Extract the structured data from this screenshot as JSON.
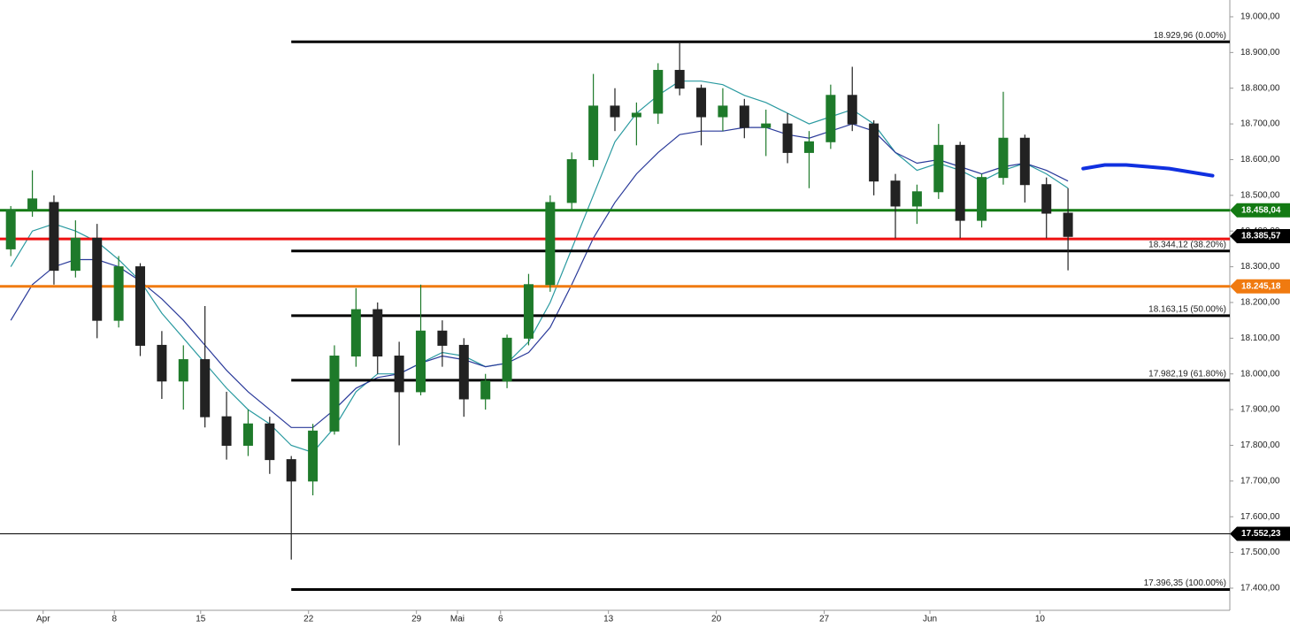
{
  "chart_data": {
    "type": "candlestick",
    "xlim": [
      0,
      57
    ],
    "ylim": [
      17338,
      19047
    ],
    "xticks": [
      {
        "value": 2.0,
        "label": "Apr"
      },
      {
        "value": 5.3,
        "label": "8"
      },
      {
        "value": 9.3,
        "label": "15"
      },
      {
        "value": 14.3,
        "label": "22"
      },
      {
        "value": 19.3,
        "label": "29"
      },
      {
        "value": 21.2,
        "label": "Mai"
      },
      {
        "value": 23.2,
        "label": "6"
      },
      {
        "value": 28.2,
        "label": "13"
      },
      {
        "value": 33.2,
        "label": "20"
      },
      {
        "value": 38.2,
        "label": "27"
      },
      {
        "value": 43.1,
        "label": "Jun"
      },
      {
        "value": 48.2,
        "label": "10"
      }
    ],
    "yticks": [
      {
        "value": 17400,
        "label": "17.400,00"
      },
      {
        "value": 17500,
        "label": "17.500,00"
      },
      {
        "value": 17600,
        "label": "17.600,00"
      },
      {
        "value": 17700,
        "label": "17.700,00"
      },
      {
        "value": 17800,
        "label": "17.800,00"
      },
      {
        "value": 17900,
        "label": "17.900,00"
      },
      {
        "value": 18000,
        "label": "18.000,00"
      },
      {
        "value": 18100,
        "label": "18.100,00"
      },
      {
        "value": 18200,
        "label": "18.200,00"
      },
      {
        "value": 18300,
        "label": "18.300,00"
      },
      {
        "value": 18400,
        "label": "18.400,00"
      },
      {
        "value": 18500,
        "label": "18.500,00"
      },
      {
        "value": 18600,
        "label": "18.600,00"
      },
      {
        "value": 18700,
        "label": "18.700,00"
      },
      {
        "value": 18800,
        "label": "18.800,00"
      },
      {
        "value": 18900,
        "label": "18.900,00"
      },
      {
        "value": 19000,
        "label": "19.000,00"
      }
    ],
    "up_color": "#1e7a2a",
    "down_color": "#222222",
    "x": [
      0.5,
      1.5,
      2.5,
      3.5,
      4.5,
      5.5,
      6.5,
      7.5,
      8.5,
      9.5,
      10.5,
      11.5,
      12.5,
      13.5,
      14.5,
      15.5,
      16.5,
      17.5,
      18.5,
      19.5,
      20.5,
      21.5,
      22.5,
      23.5,
      24.5,
      25.5,
      26.5,
      27.5,
      28.5,
      29.5,
      30.5,
      31.5,
      32.5,
      33.5,
      34.5,
      35.5,
      36.5,
      37.5,
      38.5,
      39.5,
      40.5,
      41.5,
      42.5,
      43.5,
      44.5,
      45.5,
      46.5,
      47.5,
      48.5,
      49.5
    ],
    "open": [
      18350,
      18460,
      18480,
      18290,
      18380,
      18150,
      18300,
      18080,
      17980,
      18040,
      17880,
      17800,
      17860,
      17760,
      17700,
      17840,
      18050,
      18180,
      18050,
      17950,
      18120,
      18080,
      17930,
      17980,
      18100,
      18250,
      18480,
      18600,
      18750,
      18720,
      18730,
      18850,
      18800,
      18720,
      18750,
      18690,
      18700,
      18620,
      18650,
      18780,
      18700,
      18540,
      18470,
      18510,
      18640,
      18430,
      18550,
      18660,
      18530,
      18450
    ],
    "high": [
      18470,
      18570,
      18500,
      18430,
      18420,
      18330,
      18310,
      18120,
      18080,
      18190,
      17950,
      17900,
      17880,
      17770,
      17860,
      18080,
      18240,
      18200,
      18090,
      18250,
      18150,
      18100,
      18000,
      18110,
      18280,
      18500,
      18620,
      18840,
      18800,
      18760,
      18870,
      18930,
      18810,
      18800,
      18770,
      18740,
      18730,
      18680,
      18810,
      18860,
      18710,
      18560,
      18530,
      18700,
      18650,
      18560,
      18790,
      18670,
      18550,
      18520
    ],
    "low": [
      18330,
      18440,
      18250,
      18270,
      18100,
      18130,
      18050,
      17930,
      17900,
      17850,
      17760,
      17770,
      17720,
      17480,
      17660,
      17830,
      18020,
      18000,
      17800,
      17940,
      18020,
      17880,
      17900,
      17960,
      18080,
      18230,
      18460,
      18580,
      18680,
      18640,
      18700,
      18780,
      18640,
      18680,
      18660,
      18610,
      18590,
      18520,
      18630,
      18680,
      18500,
      18380,
      18420,
      18490,
      18380,
      18410,
      18530,
      18480,
      18380,
      18290
    ],
    "close": [
      18460,
      18490,
      18290,
      18380,
      18150,
      18300,
      18080,
      17980,
      18040,
      17880,
      17800,
      17860,
      17760,
      17700,
      17840,
      18050,
      18180,
      18050,
      17950,
      18120,
      18080,
      17930,
      17980,
      18100,
      18250,
      18480,
      18600,
      18750,
      18720,
      18730,
      18850,
      18800,
      18720,
      18750,
      18690,
      18700,
      18620,
      18650,
      18780,
      18700,
      18540,
      18470,
      18510,
      18640,
      18430,
      18550,
      18660,
      18530,
      18450,
      18385
    ],
    "series": [
      {
        "color": "#2a9aa0",
        "values": [
          18300,
          18400,
          18420,
          18400,
          18370,
          18320,
          18260,
          18170,
          18100,
          18030,
          17960,
          17900,
          17860,
          17800,
          17780,
          17850,
          17950,
          18000,
          18000,
          18030,
          18060,
          18050,
          18020,
          18030,
          18090,
          18200,
          18350,
          18500,
          18650,
          18730,
          18780,
          18820,
          18820,
          18810,
          18780,
          18760,
          18730,
          18700,
          18720,
          18740,
          18700,
          18620,
          18570,
          18590,
          18570,
          18540,
          18570,
          18590,
          18560,
          18520
        ]
      },
      {
        "color": "#2a3a9a",
        "values": [
          18150,
          18250,
          18300,
          18320,
          18320,
          18300,
          18260,
          18210,
          18150,
          18080,
          18010,
          17950,
          17900,
          17850,
          17850,
          17900,
          17960,
          17990,
          18000,
          18030,
          18050,
          18040,
          18020,
          18030,
          18060,
          18130,
          18250,
          18380,
          18480,
          18560,
          18620,
          18670,
          18680,
          18680,
          18690,
          18690,
          18670,
          18660,
          18680,
          18700,
          18680,
          18620,
          18590,
          18600,
          18580,
          18560,
          18580,
          18590,
          18570,
          18540
        ]
      }
    ],
    "forecast": {
      "color": "#1030e0",
      "x": [
        50.2,
        51.2,
        52.2,
        53.2,
        54.2,
        55.2,
        56.2
      ],
      "values": [
        18575,
        18585,
        18585,
        18580,
        18575,
        18565,
        18555
      ]
    },
    "levels": [
      {
        "value": 18929.96,
        "label": "18.929,96 (0.00%)",
        "color": "#000000",
        "x_start": 13.5
      },
      {
        "value": 18344.12,
        "label": "18.344,12 (38.20%)",
        "color": "#000000",
        "x_start": 13.5
      },
      {
        "value": 18163.15,
        "label": "18.163,15 (50.00%)",
        "color": "#000000",
        "x_start": 13.5
      },
      {
        "value": 17982.19,
        "label": "17.982,19 (61.80%)",
        "color": "#000000",
        "x_start": 13.5
      },
      {
        "value": 17396.35,
        "label": "17.396,35 (100.00%)",
        "color": "#000000",
        "x_start": 13.5
      }
    ],
    "lines": [
      {
        "value": 18458.04,
        "label": "18.458,04",
        "color": "#137a13"
      },
      {
        "value": 18378,
        "color": "#ee1111"
      },
      {
        "value": 18245.18,
        "label": "18.245,18",
        "color": "#f07a10"
      },
      {
        "value": 17552.23,
        "label": "17.552,23",
        "color": "#000000",
        "thin": true
      }
    ],
    "price_tag": {
      "value": 18385.57,
      "label": "18.385,57",
      "color": "#000000"
    }
  }
}
